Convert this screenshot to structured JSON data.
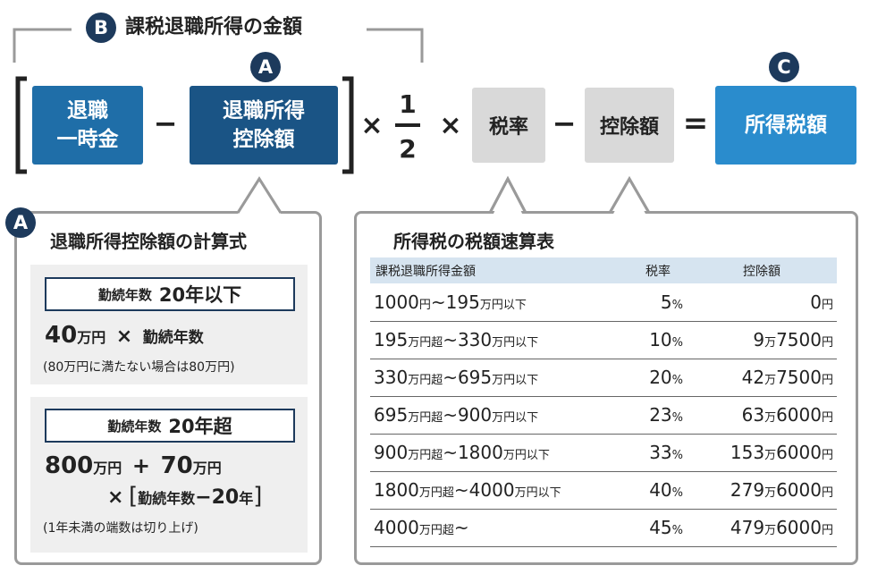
{
  "top": {
    "label_b_badge": "B",
    "label_b_text": "課税退職所得の金額",
    "badge_a": "A",
    "badge_c": "C",
    "box_retirement_lump_sum": "退職\n一時金",
    "box_retirement_deduction": "退職所得\n控除額",
    "minus1": "−",
    "times1": "×",
    "fraction_num": "1",
    "fraction_den": "2",
    "times2": "×",
    "box_tax_rate": "税率",
    "minus2": "−",
    "box_deduction": "控除額",
    "equals": "=",
    "box_income_tax": "所得税額"
  },
  "colors": {
    "navy": "#1d3a5c",
    "box_blue": "#1f6ea8",
    "box_blue_dark": "#1a5485",
    "result_blue": "#2a8ccd",
    "gray_box": "#d9d9d9",
    "table_header": "#d6e4f0"
  },
  "left_panel": {
    "badge": "A",
    "title": "退職所得控除額の計算式",
    "case1": {
      "label_prefix": "勤続年数",
      "label_value": "20年以下",
      "f_num1": "40",
      "f_unit1": "万円",
      "f_op": "×",
      "f_var": "勤続年数",
      "note": "(80万円に満たない場合は80万円)"
    },
    "case2": {
      "label_prefix": "勤続年数",
      "label_value": "20年超",
      "f_num1": "800",
      "f_unit1": "万円",
      "f_op1": "+",
      "f_num2": "70",
      "f_unit2": "万円",
      "f_op2": "×",
      "f_var": "勤続年数",
      "f_minus": "−",
      "f_num3": "20",
      "f_unit3": "年",
      "note": "(1年未満の端数は切り上げ)"
    }
  },
  "right_panel": {
    "title": "所得税の税額速算表",
    "headers": [
      "課税退職所得金額",
      "税率",
      "控除額"
    ],
    "rows": [
      {
        "income": [
          [
            "1000",
            "n"
          ],
          [
            "円",
            "u"
          ],
          [
            "~195",
            "n"
          ],
          [
            "万円以下",
            "u"
          ]
        ],
        "rate": "5",
        "ded": [
          [
            "0",
            "n"
          ],
          [
            "円",
            "u"
          ]
        ]
      },
      {
        "income": [
          [
            "195",
            "n"
          ],
          [
            "万円超",
            "u"
          ],
          [
            "~330",
            "n"
          ],
          [
            "万円以下",
            "u"
          ]
        ],
        "rate": "10",
        "ded": [
          [
            "9",
            "n"
          ],
          [
            "万",
            "u"
          ],
          [
            "7500",
            "n"
          ],
          [
            "円",
            "u"
          ]
        ]
      },
      {
        "income": [
          [
            "330",
            "n"
          ],
          [
            "万円超",
            "u"
          ],
          [
            "~695",
            "n"
          ],
          [
            "万円以下",
            "u"
          ]
        ],
        "rate": "20",
        "ded": [
          [
            "42",
            "n"
          ],
          [
            "万",
            "u"
          ],
          [
            "7500",
            "n"
          ],
          [
            "円",
            "u"
          ]
        ]
      },
      {
        "income": [
          [
            "695",
            "n"
          ],
          [
            "万円超",
            "u"
          ],
          [
            "~900",
            "n"
          ],
          [
            "万円以下",
            "u"
          ]
        ],
        "rate": "23",
        "ded": [
          [
            "63",
            "n"
          ],
          [
            "万",
            "u"
          ],
          [
            "6000",
            "n"
          ],
          [
            "円",
            "u"
          ]
        ]
      },
      {
        "income": [
          [
            "900",
            "n"
          ],
          [
            "万円超",
            "u"
          ],
          [
            "~1800",
            "n"
          ],
          [
            "万円以下",
            "u"
          ]
        ],
        "rate": "33",
        "ded": [
          [
            "153",
            "n"
          ],
          [
            "万",
            "u"
          ],
          [
            "6000",
            "n"
          ],
          [
            "円",
            "u"
          ]
        ]
      },
      {
        "income": [
          [
            "1800",
            "n"
          ],
          [
            "万円超",
            "u"
          ],
          [
            "~4000",
            "n"
          ],
          [
            "万円以下",
            "u"
          ]
        ],
        "rate": "40",
        "ded": [
          [
            "279",
            "n"
          ],
          [
            "万",
            "u"
          ],
          [
            "6000",
            "n"
          ],
          [
            "円",
            "u"
          ]
        ]
      },
      {
        "income": [
          [
            "4000",
            "n"
          ],
          [
            "万円超",
            "u"
          ],
          [
            "~",
            "n"
          ]
        ],
        "rate": "45",
        "ded": [
          [
            "479",
            "n"
          ],
          [
            "万",
            "u"
          ],
          [
            "6000",
            "n"
          ],
          [
            "円",
            "u"
          ]
        ]
      }
    ],
    "percent_unit": "%"
  }
}
